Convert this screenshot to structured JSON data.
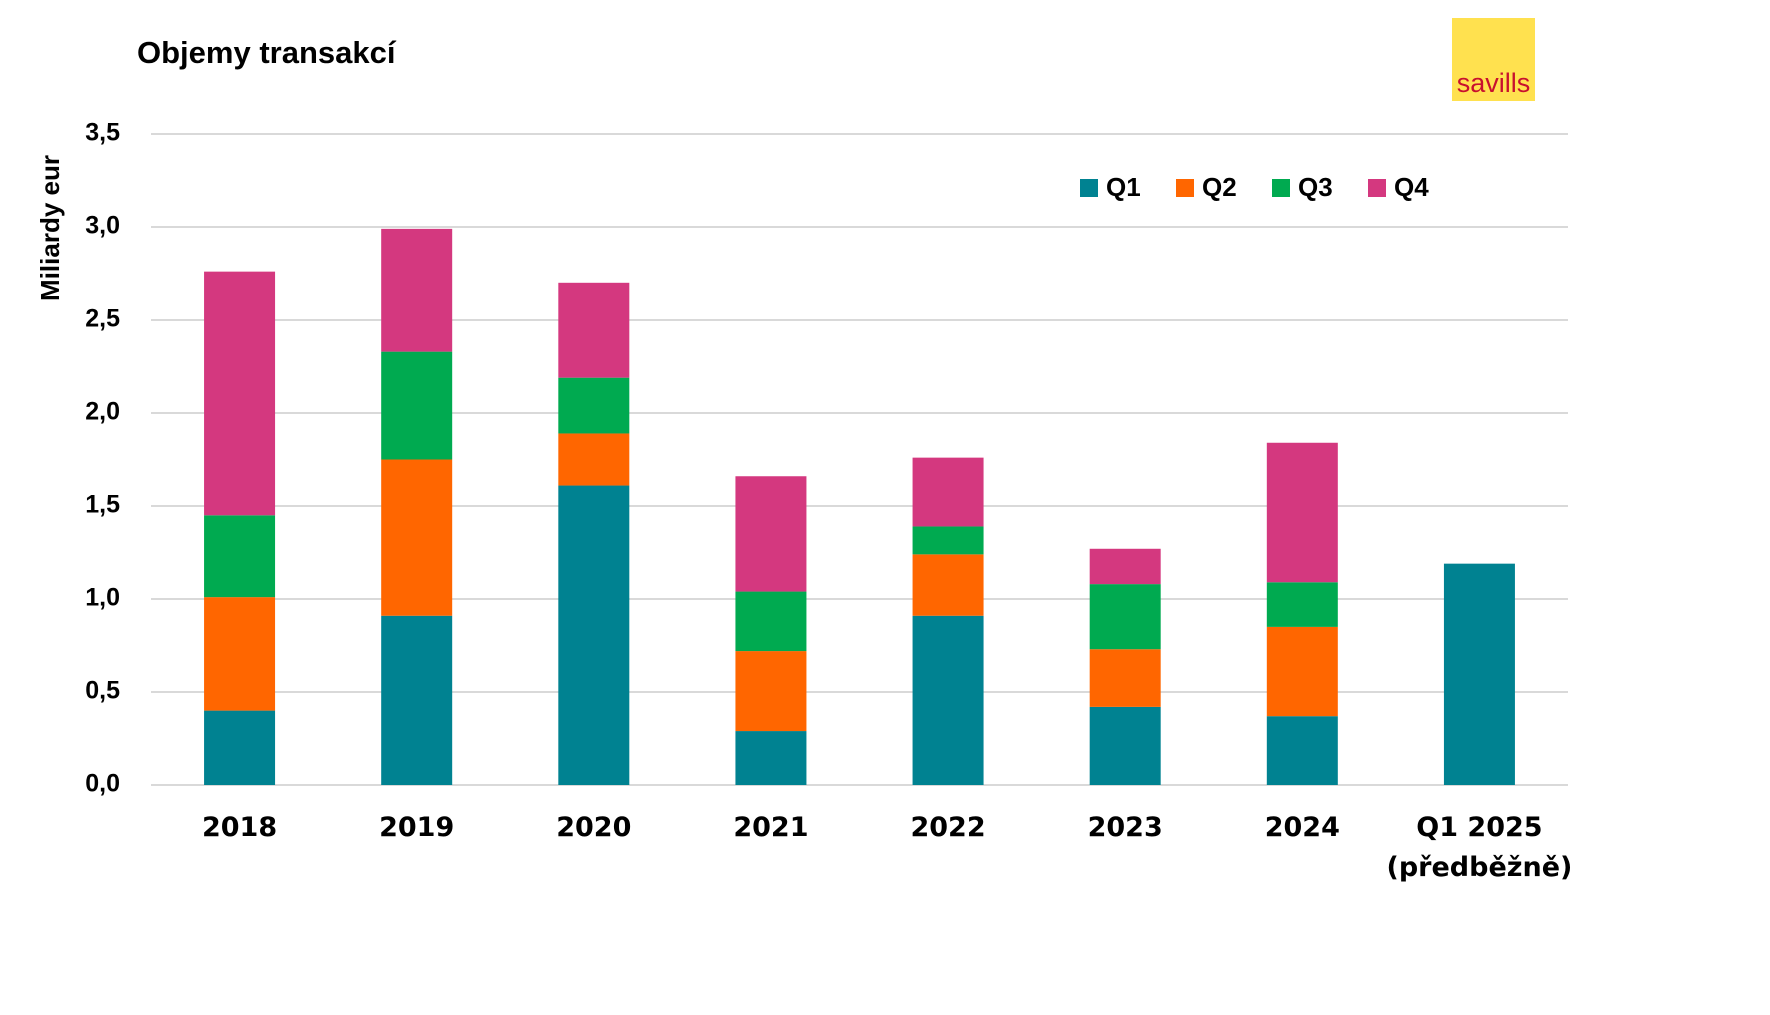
{
  "logo": "savills",
  "chart_data": {
    "type": "stacked_bar",
    "title": "Objemy transakcí",
    "y_label": "Miliardy eur",
    "categories": [
      "2018",
      "2019",
      "2020",
      "2021",
      "2022",
      "2023",
      "2024",
      "Q1 2025\n(předběžně)"
    ],
    "series": [
      {
        "name": "Q1",
        "color": "#008291",
        "values": [
          0.4,
          0.91,
          1.61,
          0.29,
          0.91,
          0.42,
          0.37,
          1.19
        ]
      },
      {
        "name": "Q2",
        "color": "#ff6600",
        "values": [
          0.61,
          0.84,
          0.28,
          0.43,
          0.33,
          0.31,
          0.48,
          null
        ]
      },
      {
        "name": "Q3",
        "color": "#00aa50",
        "values": [
          0.44,
          0.58,
          0.3,
          0.32,
          0.15,
          0.35,
          0.24,
          null
        ]
      },
      {
        "name": "Q4",
        "color": "#d4387f",
        "values": [
          1.31,
          0.66,
          0.51,
          0.62,
          0.37,
          0.19,
          0.75,
          null
        ]
      }
    ],
    "ylim": [
      0,
      3.5
    ],
    "yticks": [
      {
        "value": 0,
        "label": "0,0"
      },
      {
        "value": 0.5,
        "label": "0,5"
      },
      {
        "value": 1,
        "label": "1,0"
      },
      {
        "value": 1.5,
        "label": "1,5"
      },
      {
        "value": 2,
        "label": "2,0"
      },
      {
        "value": 2.5,
        "label": "2,5"
      },
      {
        "value": 3,
        "label": "3,0"
      },
      {
        "value": 3.5,
        "label": "3,5"
      }
    ],
    "grid": true,
    "legend": "top-right"
  }
}
